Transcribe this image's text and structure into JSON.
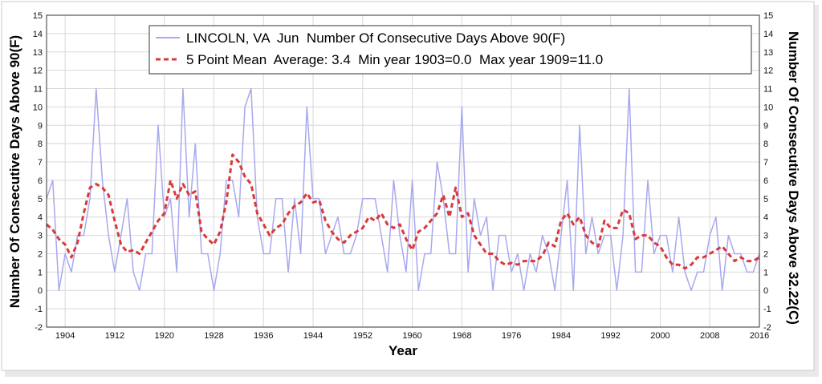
{
  "chart_data": {
    "type": "line",
    "title": "",
    "xlabel": "Year",
    "ylabel_left": "Number Of Consecutive Days Above 90(F)",
    "ylabel_right": "Number Of Consecutive Days Above 32.22(C)",
    "xlim": [
      1901,
      2016
    ],
    "ylim": [
      -2,
      15
    ],
    "x_ticks": [
      1904,
      1912,
      1920,
      1928,
      1936,
      1944,
      1952,
      1960,
      1968,
      1976,
      1984,
      1992,
      2000,
      2008,
      2016
    ],
    "y_ticks": [
      -2,
      -1,
      0,
      1,
      2,
      3,
      4,
      5,
      6,
      7,
      8,
      9,
      10,
      11,
      12,
      13,
      14,
      15
    ],
    "grid": true,
    "legend_position": "top",
    "colors": {
      "raw": "#a8a8f0",
      "mean": "#d83a3a",
      "grid": "#d8d8d8"
    },
    "series": [
      {
        "name": "LINCOLN, VA  Jun  Number Of Consecutive Days Above 90(F)",
        "style": "solid",
        "x_start": 1901,
        "values": [
          5,
          6,
          0,
          2,
          1,
          3,
          3,
          5,
          11,
          6,
          3,
          1,
          3,
          5,
          1,
          0,
          2,
          2,
          9,
          4,
          5,
          1,
          11,
          4,
          8,
          2,
          2,
          0,
          2,
          6,
          6,
          4,
          10,
          11,
          4,
          2,
          2,
          5,
          5,
          1,
          5,
          2,
          10,
          5,
          5,
          2,
          3,
          4,
          2,
          2,
          3,
          5,
          5,
          5,
          3,
          1,
          6,
          3,
          1,
          6,
          0,
          2,
          2,
          7,
          5,
          2,
          2,
          10,
          1,
          5,
          3,
          4,
          0,
          3,
          3,
          1,
          2,
          0,
          2,
          1,
          3,
          2,
          0,
          3,
          6,
          0,
          9,
          2,
          4,
          2,
          3,
          3,
          0,
          3,
          11,
          1,
          1,
          6,
          2,
          3,
          3,
          1,
          4,
          1,
          0,
          1,
          1,
          3,
          4,
          0,
          3,
          2,
          2,
          1,
          1,
          2
        ]
      },
      {
        "name": "5 Point Mean  Average: 3.4  Min year 1903=0.0  Max year 1909=11.0",
        "style": "dashed",
        "x_start": 1901,
        "values": [
          3.6,
          3.3,
          2.8,
          2.5,
          1.8,
          2.6,
          4.2,
          5.6,
          5.8,
          5.6,
          5.2,
          3.8,
          2.5,
          2.1,
          2.2,
          2.0,
          2.6,
          3.2,
          3.8,
          4.2,
          6.0,
          5.0,
          5.8,
          5.2,
          5.4,
          3.2,
          2.8,
          2.5,
          3.2,
          4.8,
          7.4,
          7.0,
          6.2,
          5.8,
          4.2,
          3.6,
          3.0,
          3.4,
          3.6,
          4.2,
          4.6,
          4.8,
          5.3,
          4.8,
          4.9,
          3.8,
          3.2,
          2.8,
          2.6,
          3.0,
          3.2,
          3.4,
          4.0,
          3.8,
          4.2,
          3.6,
          3.4,
          3.6,
          2.8,
          2.2,
          3.2,
          3.4,
          3.8,
          4.2,
          5.2,
          4.0,
          5.6,
          4.0,
          4.2,
          3.0,
          2.5,
          2.0,
          2.0,
          1.6,
          1.4,
          1.5,
          1.4,
          1.6,
          1.6,
          1.6,
          1.9,
          2.6,
          2.4,
          3.8,
          4.2,
          3.6,
          4.0,
          3.0,
          2.6,
          2.4,
          3.8,
          3.4,
          3.4,
          4.4,
          4.2,
          2.8,
          3.0,
          3.0,
          2.6,
          2.4,
          1.8,
          1.4,
          1.4,
          1.2,
          1.4,
          1.8,
          1.8,
          2.0,
          2.2,
          2.4,
          2.0,
          1.6,
          1.8,
          1.6,
          1.6,
          1.8
        ]
      }
    ]
  }
}
